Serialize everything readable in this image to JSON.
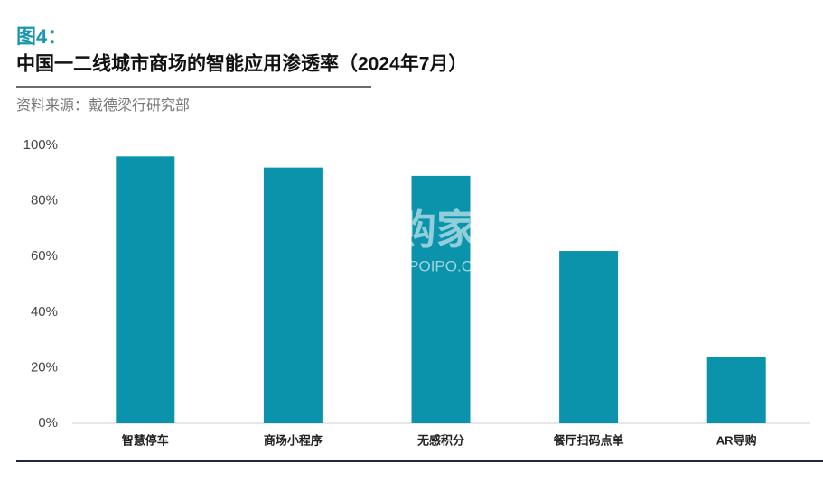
{
  "chart_data": {
    "type": "bar",
    "figure_label": "图4：",
    "title": "中国一二线城市商场的智能应用渗透率（2024年7月）",
    "source": "资料来源：戴德梁行研究部",
    "watermark": [
      "并购家",
      "行业报告 IPOIPO.CN"
    ],
    "categories": [
      "智慧停车",
      "商场小程序",
      "无感积分",
      "餐厅扫码点单",
      "AR导购"
    ],
    "values": [
      96,
      92,
      89,
      62,
      24
    ],
    "color": "#0a93ab",
    "ylim": [
      0,
      100
    ],
    "yticks": [
      {
        "value": 0,
        "label": "0%"
      },
      {
        "value": 20,
        "label": "20%"
      },
      {
        "value": 40,
        "label": "40%"
      },
      {
        "value": 60,
        "label": "60%"
      },
      {
        "value": 80,
        "label": "80%"
      },
      {
        "value": 100,
        "label": "100%"
      }
    ],
    "grid": false
  }
}
